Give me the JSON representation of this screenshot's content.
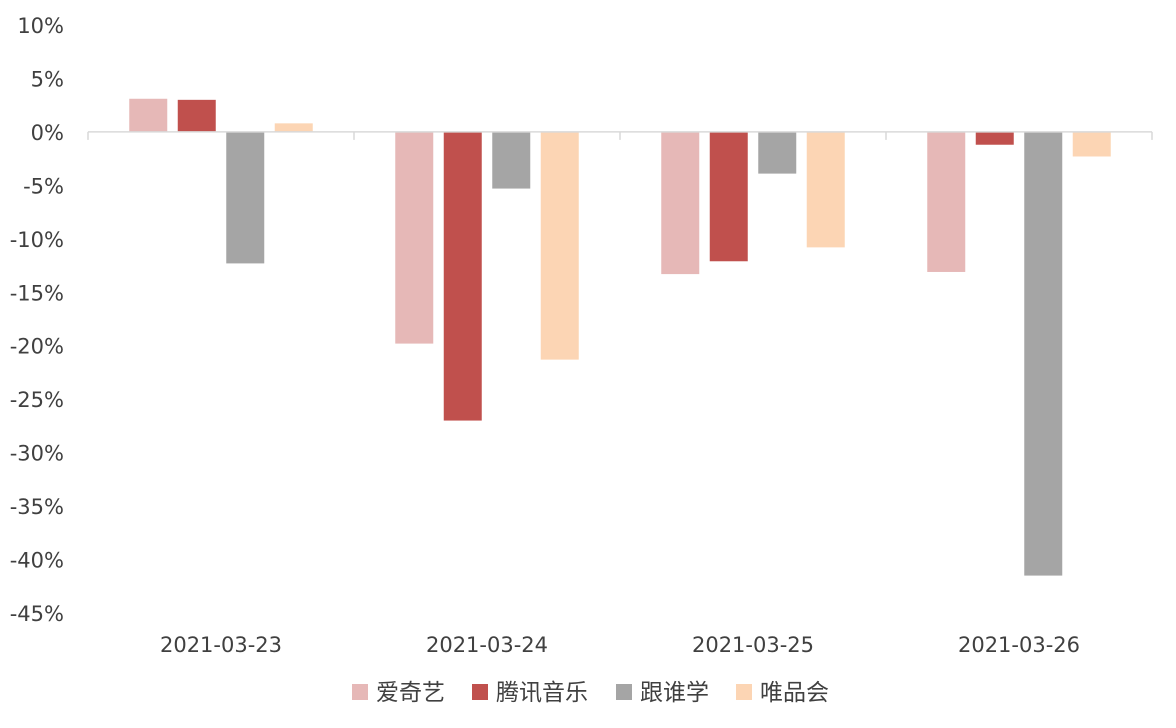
{
  "chart_data": {
    "type": "bar",
    "title": "",
    "xlabel": "",
    "ylabel": "",
    "categories": [
      "2021-03-23",
      "2021-03-24",
      "2021-03-25",
      "2021-03-26"
    ],
    "ylim": [
      -45,
      10
    ],
    "yticks": [
      10,
      5,
      0,
      -5,
      -10,
      -15,
      -20,
      -25,
      -30,
      -35,
      -40,
      -45
    ],
    "ytick_labels": [
      "10%",
      "5%",
      "0%",
      "-5%",
      "-10%",
      "-15%",
      "-20%",
      "-25%",
      "-30%",
      "-35%",
      "-40%",
      "-45%"
    ],
    "series": [
      {
        "name": "爱奇艺",
        "color": "#E6B8B7",
        "values": [
          3.1,
          -19.8,
          -13.3,
          -13.1
        ]
      },
      {
        "name": "腾讯音乐",
        "color": "#C0504D",
        "values": [
          3.0,
          -27.0,
          -12.1,
          -1.2
        ]
      },
      {
        "name": "跟谁学",
        "color": "#A5A5A5",
        "values": [
          -12.3,
          -5.3,
          -3.9,
          -41.5
        ]
      },
      {
        "name": "唯品会",
        "color": "#FCD5B4",
        "values": [
          0.8,
          -21.3,
          -10.8,
          -2.3
        ]
      }
    ],
    "grid": false,
    "legend_position": "bottom"
  }
}
